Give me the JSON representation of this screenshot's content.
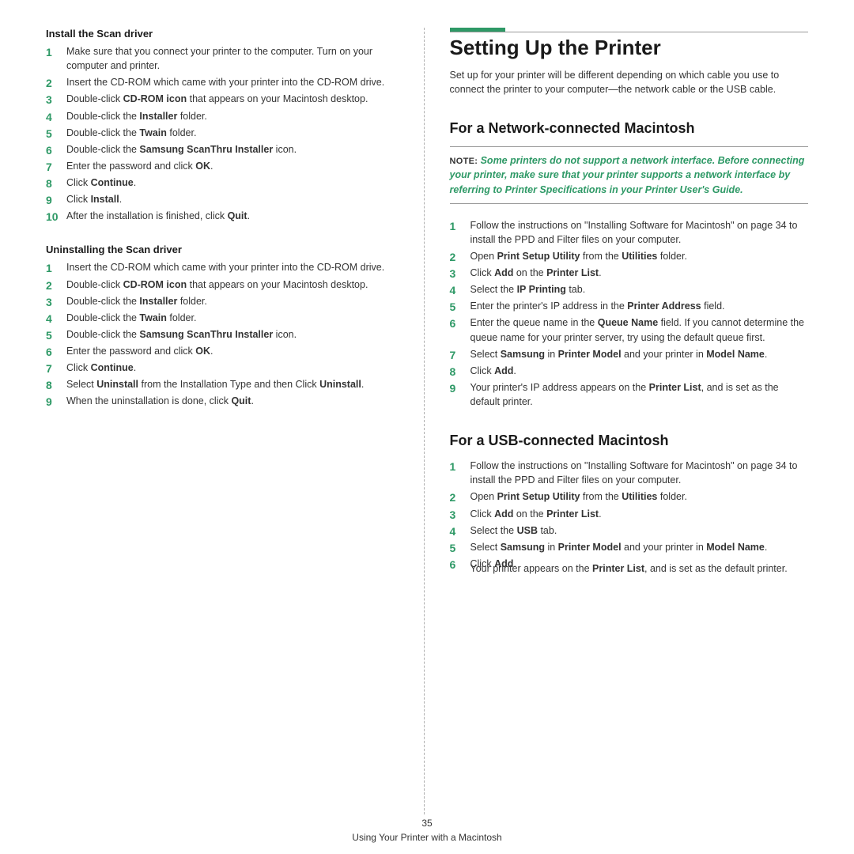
{
  "colors": {
    "accent": "#2e9966",
    "text": "#333333",
    "heading": "#1a1a1a",
    "divider": "#b0b0b0",
    "rule": "#999999",
    "bg": "#ffffff"
  },
  "typography": {
    "body_pt": 12.5,
    "h1_pt": 26,
    "h2_pt": 18,
    "sub_pt": 13,
    "step_num_pt": 14,
    "family": "Verdana"
  },
  "left": {
    "install_heading": "Install the Scan driver",
    "install_steps": [
      "Make sure that you connect your printer to the computer. Turn on your computer and printer.",
      "Insert the CD-ROM which came with your printer into the CD-ROM drive.",
      "Double-click <b>CD-ROM icon</b> that appears on your Macintosh desktop.",
      "Double-click the <b>Installer</b> folder.",
      "Double-click the <b>Twain</b> folder.",
      "Double-click the <b>Samsung ScanThru Installer</b> icon.",
      "Enter the password and click <b>OK</b>.",
      "Click <b>Continue</b>.",
      "Click <b>Install</b>.",
      "After the installation is finished, click <b>Quit</b>."
    ],
    "uninstall_heading": "Uninstalling the Scan driver",
    "uninstall_steps": [
      "Insert the CD-ROM which came with your printer into the CD-ROM drive.",
      "Double-click <b>CD-ROM icon</b> that appears on your Macintosh desktop.",
      "Double-click the <b>Installer</b> folder.",
      "Double-click the <b>Twain</b> folder.",
      "Double-click the <b>Samsung ScanThru Installer</b> icon.",
      "Enter the password and click <b>OK</b>.",
      "Click <b>Continue</b>.",
      "Select <b>Uninstall</b> from the Installation Type and then Click <b>Uninstall</b>.",
      "When the uninstallation is done, click <b>Quit</b>."
    ]
  },
  "right": {
    "h1": "Setting Up the Printer",
    "intro": "Set up for your printer will be different depending on which cable you use to connect the printer to your computer—the network cable or the USB cable.",
    "network_heading": "For a Network-connected Macintosh",
    "note_label": "NOTE",
    "note_text": "Some printers do not support a network interface. Before connecting your printer, make sure that your printer supports a network interface by referring to Printer Specifications in your Printer User's Guide.",
    "network_steps": [
      "Follow the instructions on \"Installing Software for Macintosh\" on page 34 to install the PPD and Filter files on your computer.",
      "Open <b>Print Setup Utility</b> from the <b>Utilities</b> folder.",
      "Click <b>Add</b> on the <b>Printer List</b>.",
      "Select the <b>IP Printing</b> tab.",
      "Enter the printer's IP address in the <b>Printer Address</b> field.",
      "Enter the queue name in the <b>Queue Name</b> field. If you cannot determine the queue name for your printer server, try using the default queue first.",
      "Select <b>Samsung</b> in <b>Printer Model</b> and your printer in <b>Model Name</b>.",
      "Click <b>Add</b>.",
      "Your printer's IP address appears on the <b>Printer List</b>, and is set as the default printer."
    ],
    "usb_heading": "For a USB-connected Macintosh",
    "usb_steps": [
      "Follow the instructions on \"Installing Software for Macintosh\" on page 34 to install the PPD and Filter files on your computer.",
      "Open <b>Print Setup Utility</b> from the <b>Utilities</b> folder.",
      "Click <b>Add</b> on the <b>Printer List</b>.",
      "Select the <b>USB</b> tab.",
      "Select <b>Samsung</b> in <b>Printer Model</b> and your printer in <b>Model Name</b>.",
      "Click <b>Add</b>."
    ],
    "usb_after": "Your printer appears on the <b>Printer List</b>, and is set as the default printer."
  },
  "footer": {
    "page_number": "35",
    "section": "Using Your Printer with a Macintosh"
  }
}
